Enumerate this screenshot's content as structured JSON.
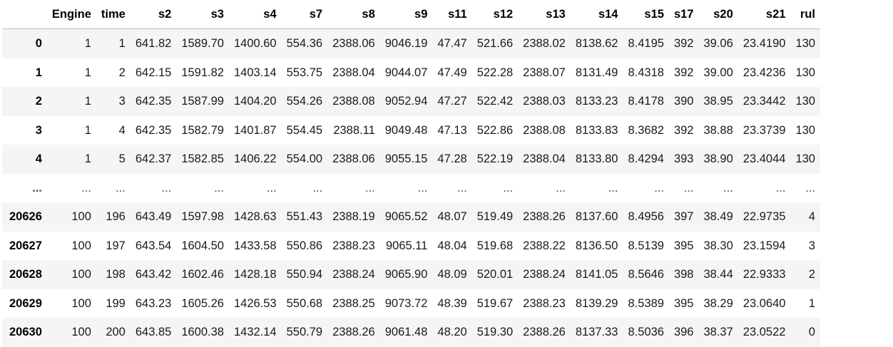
{
  "table": {
    "index_header": "",
    "columns": [
      "Engine",
      "time",
      "s2",
      "s3",
      "s4",
      "s7",
      "s8",
      "s9",
      "s11",
      "s12",
      "s13",
      "s14",
      "s15",
      "s17",
      "s20",
      "s21",
      "rul"
    ],
    "rows": [
      {
        "index": "0",
        "cells": [
          "1",
          "1",
          "641.82",
          "1589.70",
          "1400.60",
          "554.36",
          "2388.06",
          "9046.19",
          "47.47",
          "521.66",
          "2388.02",
          "8138.62",
          "8.4195",
          "392",
          "39.06",
          "23.4190",
          "130"
        ]
      },
      {
        "index": "1",
        "cells": [
          "1",
          "2",
          "642.15",
          "1591.82",
          "1403.14",
          "553.75",
          "2388.04",
          "9044.07",
          "47.49",
          "522.28",
          "2388.07",
          "8131.49",
          "8.4318",
          "392",
          "39.00",
          "23.4236",
          "130"
        ]
      },
      {
        "index": "2",
        "cells": [
          "1",
          "3",
          "642.35",
          "1587.99",
          "1404.20",
          "554.26",
          "2388.08",
          "9052.94",
          "47.27",
          "522.42",
          "2388.03",
          "8133.23",
          "8.4178",
          "390",
          "38.95",
          "23.3442",
          "130"
        ]
      },
      {
        "index": "3",
        "cells": [
          "1",
          "4",
          "642.35",
          "1582.79",
          "1401.87",
          "554.45",
          "2388.11",
          "9049.48",
          "47.13",
          "522.86",
          "2388.08",
          "8133.83",
          "8.3682",
          "392",
          "38.88",
          "23.3739",
          "130"
        ]
      },
      {
        "index": "4",
        "cells": [
          "1",
          "5",
          "642.37",
          "1582.85",
          "1406.22",
          "554.00",
          "2388.06",
          "9055.15",
          "47.28",
          "522.19",
          "2388.04",
          "8133.80",
          "8.4294",
          "393",
          "38.90",
          "23.4044",
          "130"
        ]
      },
      {
        "index": "...",
        "cells": [
          "...",
          "...",
          "...",
          "...",
          "...",
          "...",
          "...",
          "...",
          "...",
          "...",
          "...",
          "...",
          "...",
          "...",
          "...",
          "...",
          "..."
        ]
      },
      {
        "index": "20626",
        "cells": [
          "100",
          "196",
          "643.49",
          "1597.98",
          "1428.63",
          "551.43",
          "2388.19",
          "9065.52",
          "48.07",
          "519.49",
          "2388.26",
          "8137.60",
          "8.4956",
          "397",
          "38.49",
          "22.9735",
          "4"
        ]
      },
      {
        "index": "20627",
        "cells": [
          "100",
          "197",
          "643.54",
          "1604.50",
          "1433.58",
          "550.86",
          "2388.23",
          "9065.11",
          "48.04",
          "519.68",
          "2388.22",
          "8136.50",
          "8.5139",
          "395",
          "38.30",
          "23.1594",
          "3"
        ]
      },
      {
        "index": "20628",
        "cells": [
          "100",
          "198",
          "643.42",
          "1602.46",
          "1428.18",
          "550.94",
          "2388.24",
          "9065.90",
          "48.09",
          "520.01",
          "2388.24",
          "8141.05",
          "8.5646",
          "398",
          "38.44",
          "22.9333",
          "2"
        ]
      },
      {
        "index": "20629",
        "cells": [
          "100",
          "199",
          "643.23",
          "1605.26",
          "1426.53",
          "550.68",
          "2388.25",
          "9073.72",
          "48.39",
          "519.67",
          "2388.23",
          "8139.29",
          "8.5389",
          "395",
          "38.29",
          "23.0640",
          "1"
        ]
      },
      {
        "index": "20630",
        "cells": [
          "100",
          "200",
          "643.85",
          "1600.38",
          "1432.14",
          "550.79",
          "2388.26",
          "9061.48",
          "48.20",
          "519.30",
          "2388.26",
          "8137.33",
          "8.5036",
          "396",
          "38.37",
          "23.0522",
          "0"
        ]
      }
    ]
  }
}
